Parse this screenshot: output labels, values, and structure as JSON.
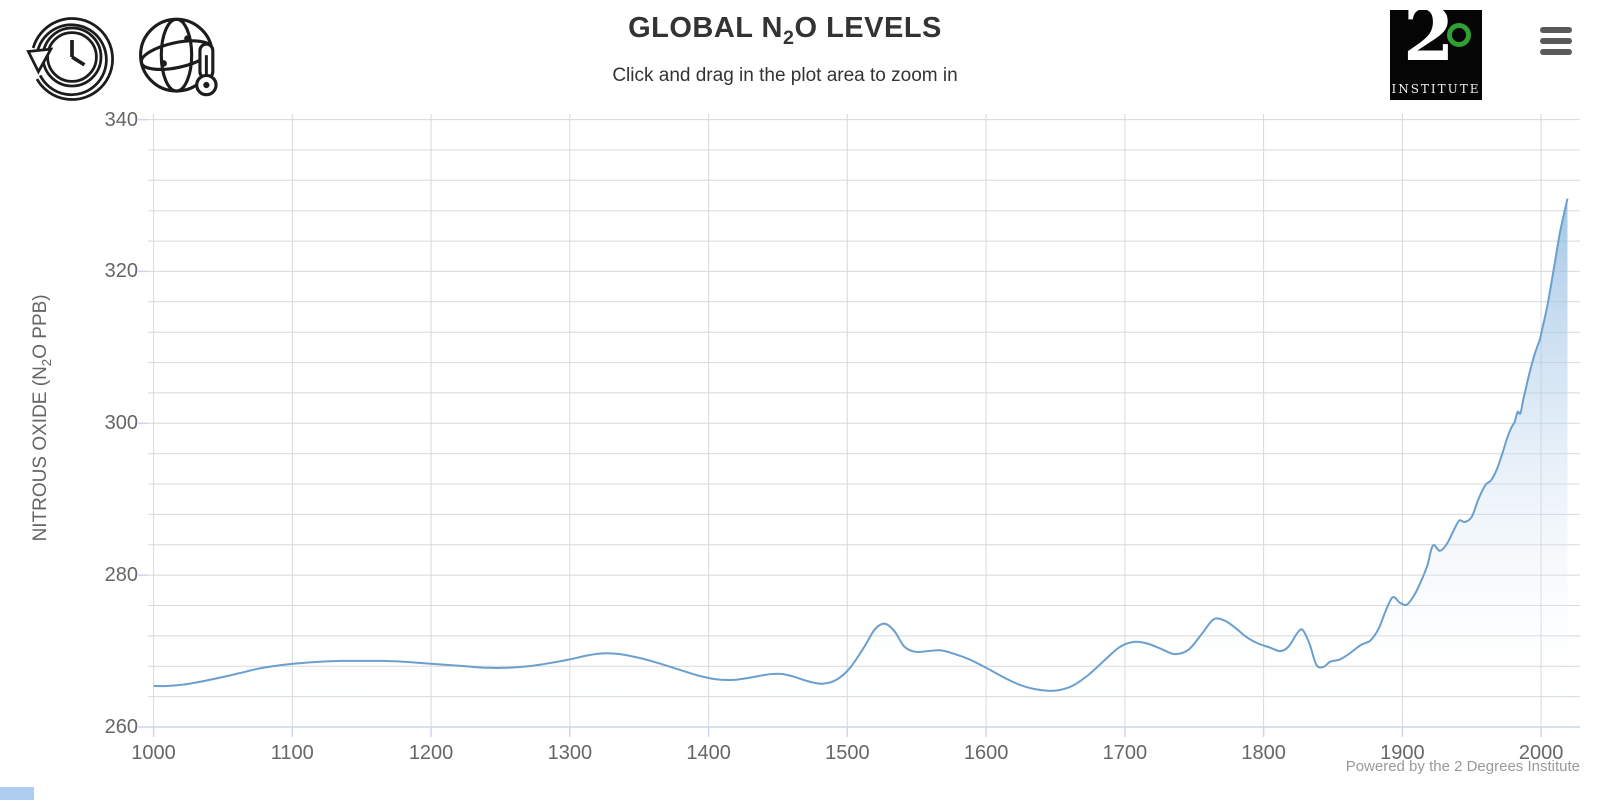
{
  "header": {
    "title": {
      "pre": "GLOBAL N",
      "sub": "2",
      "post": "O LEVELS"
    },
    "subtitle": "Click and drag in the plot area to zoom in",
    "nav_icons": [
      {
        "name": "history-icon",
        "meaning": "historical levels"
      },
      {
        "name": "globe-thermometer-icon",
        "meaning": "global temperature"
      }
    ],
    "logo": {
      "number": "2",
      "degree_symbol": "°",
      "caption": "INSTITUTE",
      "accent_color": "#2f9e33"
    },
    "menu_icon": "hamburger-menu"
  },
  "chart_data": {
    "type": "area",
    "title": "GLOBAL N2O LEVELS",
    "subtitle": "Click and drag in the plot area to zoom in",
    "xlabel": "",
    "ylabel": {
      "pre": "NITROUS OXIDE (N",
      "sub": "2",
      "post": "O PPB)"
    },
    "x_ticks": [
      1000,
      1100,
      1200,
      1300,
      1400,
      1500,
      1600,
      1700,
      1800,
      1900,
      2000
    ],
    "y_ticks": [
      260,
      280,
      300,
      320,
      340
    ],
    "y_minor_step": 4,
    "xlim": [
      996,
      2028
    ],
    "ylim": [
      260,
      341
    ],
    "grid": true,
    "legend_position": "none",
    "colors": {
      "line": "#6b9fce",
      "fill_top": "#73a9d9",
      "grid": "#d8d8d8",
      "axis": "#ccd6eb",
      "label": "#666666"
    },
    "series": [
      {
        "name": "Global N2O levels (ppb)",
        "points": [
          [
            1000,
            265.4
          ],
          [
            1010,
            265.4
          ],
          [
            1022,
            265.6
          ],
          [
            1035,
            266.0
          ],
          [
            1048,
            266.5
          ],
          [
            1062,
            267.1
          ],
          [
            1076,
            267.7
          ],
          [
            1090,
            268.1
          ],
          [
            1105,
            268.4
          ],
          [
            1120,
            268.6
          ],
          [
            1135,
            268.7
          ],
          [
            1150,
            268.7
          ],
          [
            1165,
            268.7
          ],
          [
            1180,
            268.6
          ],
          [
            1195,
            268.4
          ],
          [
            1210,
            268.2
          ],
          [
            1225,
            268.0
          ],
          [
            1240,
            267.8
          ],
          [
            1255,
            267.8
          ],
          [
            1270,
            268.0
          ],
          [
            1285,
            268.4
          ],
          [
            1300,
            268.9
          ],
          [
            1312,
            269.4
          ],
          [
            1324,
            269.7
          ],
          [
            1336,
            269.6
          ],
          [
            1350,
            269.1
          ],
          [
            1364,
            268.4
          ],
          [
            1378,
            267.6
          ],
          [
            1392,
            266.8
          ],
          [
            1405,
            266.3
          ],
          [
            1418,
            266.2
          ],
          [
            1430,
            266.5
          ],
          [
            1442,
            266.9
          ],
          [
            1452,
            267.0
          ],
          [
            1462,
            266.6
          ],
          [
            1472,
            266.0
          ],
          [
            1482,
            265.7
          ],
          [
            1492,
            266.2
          ],
          [
            1502,
            267.8
          ],
          [
            1512,
            270.5
          ],
          [
            1520,
            272.9
          ],
          [
            1527,
            273.6
          ],
          [
            1534,
            272.6
          ],
          [
            1541,
            270.6
          ],
          [
            1549,
            269.9
          ],
          [
            1558,
            270.0
          ],
          [
            1567,
            270.1
          ],
          [
            1576,
            269.7
          ],
          [
            1588,
            268.9
          ],
          [
            1600,
            267.8
          ],
          [
            1612,
            266.6
          ],
          [
            1625,
            265.5
          ],
          [
            1638,
            264.9
          ],
          [
            1650,
            264.8
          ],
          [
            1662,
            265.4
          ],
          [
            1674,
            266.9
          ],
          [
            1686,
            268.9
          ],
          [
            1696,
            270.5
          ],
          [
            1706,
            271.2
          ],
          [
            1716,
            271.0
          ],
          [
            1726,
            270.3
          ],
          [
            1736,
            269.6
          ],
          [
            1746,
            270.2
          ],
          [
            1756,
            272.4
          ],
          [
            1764,
            274.2
          ],
          [
            1772,
            274.0
          ],
          [
            1780,
            273.0
          ],
          [
            1788,
            271.8
          ],
          [
            1796,
            271.0
          ],
          [
            1804,
            270.5
          ],
          [
            1812,
            270.0
          ],
          [
            1818,
            270.6
          ],
          [
            1824,
            272.3
          ],
          [
            1828,
            272.8
          ],
          [
            1833,
            271.0
          ],
          [
            1838,
            268.2
          ],
          [
            1843,
            267.9
          ],
          [
            1848,
            268.6
          ],
          [
            1855,
            268.9
          ],
          [
            1862,
            269.7
          ],
          [
            1870,
            270.8
          ],
          [
            1877,
            271.4
          ],
          [
            1883,
            273.0
          ],
          [
            1888,
            275.3
          ],
          [
            1893,
            277.1
          ],
          [
            1898,
            276.4
          ],
          [
            1903,
            276.1
          ],
          [
            1908,
            277.2
          ],
          [
            1913,
            279.0
          ],
          [
            1918,
            281.3
          ],
          [
            1922,
            283.9
          ],
          [
            1927,
            283.2
          ],
          [
            1932,
            284.1
          ],
          [
            1937,
            285.9
          ],
          [
            1941,
            287.2
          ],
          [
            1945,
            287.0
          ],
          [
            1950,
            287.7
          ],
          [
            1955,
            290.1
          ],
          [
            1960,
            291.9
          ],
          [
            1964,
            292.5
          ],
          [
            1968,
            293.9
          ],
          [
            1972,
            296.0
          ],
          [
            1976,
            298.3
          ],
          [
            1979,
            299.6
          ],
          [
            1981,
            300.2
          ],
          [
            1983,
            301.5
          ],
          [
            1985,
            301.3
          ],
          [
            1987,
            303.0
          ],
          [
            1989,
            304.6
          ],
          [
            1991,
            306.2
          ],
          [
            1993,
            307.6
          ],
          [
            1995,
            308.9
          ],
          [
            1997,
            310.0
          ],
          [
            1999,
            311.0
          ],
          [
            2001,
            312.6
          ],
          [
            2003,
            314.2
          ],
          [
            2005,
            316.0
          ],
          [
            2007,
            318.1
          ],
          [
            2009,
            320.2
          ],
          [
            2011,
            322.4
          ],
          [
            2013,
            324.6
          ],
          [
            2015,
            326.4
          ],
          [
            2017,
            328.0
          ],
          [
            2019,
            329.6
          ]
        ]
      }
    ],
    "credit": "Powered by the 2 Degrees Institute"
  }
}
